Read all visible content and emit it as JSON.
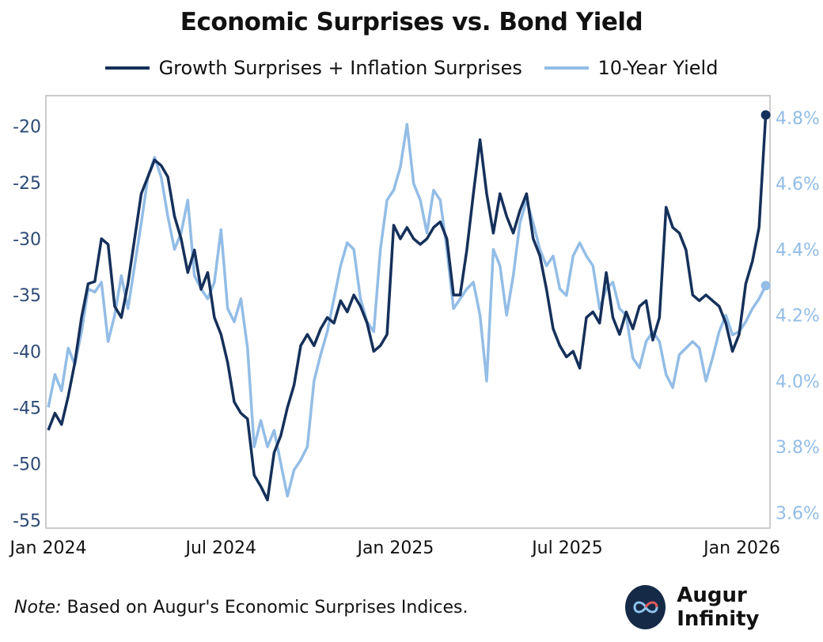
{
  "chart_data": {
    "type": "line",
    "title": "Economic Surprises vs. Bond Yield",
    "x_ticks": [
      "Jan 2024",
      "Jul 2024",
      "Jan 2025",
      "Jul 2025",
      "Jan 2026"
    ],
    "y_left": {
      "ticks": [
        "-20",
        "-25",
        "-30",
        "-35",
        "-40",
        "-45",
        "-50",
        "-55"
      ],
      "range": [
        -55.5,
        -17.5
      ]
    },
    "y_right": {
      "ticks": [
        "4.8%",
        "4.6%",
        "4.4%",
        "4.2%",
        "4.0%",
        "3.8%",
        "3.6%"
      ],
      "range": [
        3.56,
        4.86
      ]
    },
    "x_range": [
      "2024-01-01",
      "2026-01-28"
    ],
    "legend_position": "top-center",
    "grid": false,
    "series": [
      {
        "name": "Growth Surprises + Inflation Surprises",
        "axis": "left",
        "color": "#15305a",
        "points": [
          [
            "2024-01-01",
            -47.0
          ],
          [
            "2024-01-08",
            -45.5
          ],
          [
            "2024-01-15",
            -46.5
          ],
          [
            "2024-01-22",
            -44.0
          ],
          [
            "2024-01-29",
            -41.0
          ],
          [
            "2024-02-05",
            -37.0
          ],
          [
            "2024-02-12",
            -34.0
          ],
          [
            "2024-02-19",
            -33.8
          ],
          [
            "2024-02-26",
            -30.0
          ],
          [
            "2024-03-04",
            -30.5
          ],
          [
            "2024-03-11",
            -36.0
          ],
          [
            "2024-03-18",
            -37.0
          ],
          [
            "2024-03-25",
            -34.0
          ],
          [
            "2024-04-01",
            -30.0
          ],
          [
            "2024-04-08",
            -26.0
          ],
          [
            "2024-04-15",
            -24.5
          ],
          [
            "2024-04-22",
            -23.0
          ],
          [
            "2024-04-29",
            -23.5
          ],
          [
            "2024-05-06",
            -24.5
          ],
          [
            "2024-05-13",
            -28.0
          ],
          [
            "2024-05-20",
            -30.0
          ],
          [
            "2024-05-27",
            -33.0
          ],
          [
            "2024-06-03",
            -31.0
          ],
          [
            "2024-06-10",
            -34.5
          ],
          [
            "2024-06-17",
            -33.0
          ],
          [
            "2024-06-24",
            -37.0
          ],
          [
            "2024-07-01",
            -38.5
          ],
          [
            "2024-07-08",
            -41.0
          ],
          [
            "2024-07-15",
            -44.5
          ],
          [
            "2024-07-22",
            -45.5
          ],
          [
            "2024-07-29",
            -46.0
          ],
          [
            "2024-08-05",
            -51.0
          ],
          [
            "2024-08-12",
            -52.0
          ],
          [
            "2024-08-19",
            -53.2
          ],
          [
            "2024-08-26",
            -49.0
          ],
          [
            "2024-09-02",
            -47.5
          ],
          [
            "2024-09-09",
            -45.0
          ],
          [
            "2024-09-16",
            -43.0
          ],
          [
            "2024-09-23",
            -39.5
          ],
          [
            "2024-09-30",
            -38.5
          ],
          [
            "2024-10-07",
            -39.5
          ],
          [
            "2024-10-14",
            -38.0
          ],
          [
            "2024-10-21",
            -37.0
          ],
          [
            "2024-10-28",
            -37.5
          ],
          [
            "2024-11-04",
            -35.5
          ],
          [
            "2024-11-11",
            -36.5
          ],
          [
            "2024-11-18",
            -35.0
          ],
          [
            "2024-11-25",
            -36.0
          ],
          [
            "2024-12-02",
            -37.5
          ],
          [
            "2024-12-09",
            -40.0
          ],
          [
            "2024-12-16",
            -39.5
          ],
          [
            "2024-12-23",
            -38.5
          ],
          [
            "2024-12-30",
            -28.8
          ],
          [
            "2025-01-06",
            -30.0
          ],
          [
            "2025-01-13",
            -29.0
          ],
          [
            "2025-01-20",
            -30.0
          ],
          [
            "2025-01-27",
            -30.5
          ],
          [
            "2025-02-03",
            -30.0
          ],
          [
            "2025-02-10",
            -29.0
          ],
          [
            "2025-02-17",
            -28.5
          ],
          [
            "2025-02-24",
            -30.0
          ],
          [
            "2025-03-03",
            -35.0
          ],
          [
            "2025-03-10",
            -35.0
          ],
          [
            "2025-03-17",
            -31.0
          ],
          [
            "2025-03-24",
            -26.0
          ],
          [
            "2025-03-31",
            -21.2
          ],
          [
            "2025-04-07",
            -26.0
          ],
          [
            "2025-04-14",
            -29.5
          ],
          [
            "2025-04-21",
            -26.0
          ],
          [
            "2025-04-28",
            -28.0
          ],
          [
            "2025-05-05",
            -29.5
          ],
          [
            "2025-05-12",
            -27.5
          ],
          [
            "2025-05-19",
            -26.0
          ],
          [
            "2025-05-26",
            -30.0
          ],
          [
            "2025-06-02",
            -31.5
          ],
          [
            "2025-06-09",
            -34.5
          ],
          [
            "2025-06-16",
            -38.0
          ],
          [
            "2025-06-23",
            -39.5
          ],
          [
            "2025-06-30",
            -40.5
          ],
          [
            "2025-07-07",
            -40.0
          ],
          [
            "2025-07-14",
            -41.5
          ],
          [
            "2025-07-21",
            -37.0
          ],
          [
            "2025-07-28",
            -36.5
          ],
          [
            "2025-08-04",
            -37.5
          ],
          [
            "2025-08-11",
            -33.0
          ],
          [
            "2025-08-18",
            -37.0
          ],
          [
            "2025-08-25",
            -38.5
          ],
          [
            "2025-09-01",
            -36.5
          ],
          [
            "2025-09-08",
            -38.0
          ],
          [
            "2025-09-15",
            -36.0
          ],
          [
            "2025-09-22",
            -35.5
          ],
          [
            "2025-09-29",
            -39.0
          ],
          [
            "2025-10-06",
            -37.0
          ],
          [
            "2025-10-13",
            -27.2
          ],
          [
            "2025-10-20",
            -29.0
          ],
          [
            "2025-10-27",
            -29.5
          ],
          [
            "2025-11-03",
            -31.0
          ],
          [
            "2025-11-10",
            -35.0
          ],
          [
            "2025-11-17",
            -35.5
          ],
          [
            "2025-11-24",
            -35.0
          ],
          [
            "2025-12-01",
            -35.5
          ],
          [
            "2025-12-08",
            -36.0
          ],
          [
            "2025-12-15",
            -37.5
          ],
          [
            "2025-12-22",
            -40.0
          ],
          [
            "2025-12-29",
            -38.5
          ],
          [
            "2026-01-05",
            -34.0
          ],
          [
            "2026-01-12",
            -32.0
          ],
          [
            "2026-01-19",
            -29.0
          ],
          [
            "2026-01-26",
            -19.0
          ]
        ]
      },
      {
        "name": "10-Year Yield",
        "axis": "right",
        "color": "#93bde6",
        "points": [
          [
            "2024-01-01",
            3.92
          ],
          [
            "2024-01-08",
            4.02
          ],
          [
            "2024-01-15",
            3.97
          ],
          [
            "2024-01-22",
            4.1
          ],
          [
            "2024-01-29",
            4.05
          ],
          [
            "2024-02-05",
            4.15
          ],
          [
            "2024-02-12",
            4.28
          ],
          [
            "2024-02-19",
            4.27
          ],
          [
            "2024-02-26",
            4.3
          ],
          [
            "2024-03-04",
            4.12
          ],
          [
            "2024-03-11",
            4.2
          ],
          [
            "2024-03-18",
            4.32
          ],
          [
            "2024-03-25",
            4.22
          ],
          [
            "2024-04-01",
            4.35
          ],
          [
            "2024-04-08",
            4.48
          ],
          [
            "2024-04-15",
            4.62
          ],
          [
            "2024-04-22",
            4.68
          ],
          [
            "2024-04-29",
            4.62
          ],
          [
            "2024-05-06",
            4.5
          ],
          [
            "2024-05-13",
            4.4
          ],
          [
            "2024-05-20",
            4.45
          ],
          [
            "2024-05-27",
            4.55
          ],
          [
            "2024-06-03",
            4.32
          ],
          [
            "2024-06-10",
            4.28
          ],
          [
            "2024-06-17",
            4.25
          ],
          [
            "2024-06-24",
            4.3
          ],
          [
            "2024-07-01",
            4.46
          ],
          [
            "2024-07-08",
            4.22
          ],
          [
            "2024-07-15",
            4.18
          ],
          [
            "2024-07-22",
            4.25
          ],
          [
            "2024-07-29",
            4.1
          ],
          [
            "2024-08-05",
            3.8
          ],
          [
            "2024-08-12",
            3.88
          ],
          [
            "2024-08-19",
            3.8
          ],
          [
            "2024-08-26",
            3.85
          ],
          [
            "2024-09-02",
            3.75
          ],
          [
            "2024-09-09",
            3.65
          ],
          [
            "2024-09-16",
            3.73
          ],
          [
            "2024-09-23",
            3.76
          ],
          [
            "2024-09-30",
            3.8
          ],
          [
            "2024-10-07",
            4.0
          ],
          [
            "2024-10-14",
            4.08
          ],
          [
            "2024-10-21",
            4.15
          ],
          [
            "2024-10-28",
            4.25
          ],
          [
            "2024-11-04",
            4.35
          ],
          [
            "2024-11-11",
            4.42
          ],
          [
            "2024-11-18",
            4.4
          ],
          [
            "2024-11-25",
            4.25
          ],
          [
            "2024-12-02",
            4.18
          ],
          [
            "2024-12-09",
            4.15
          ],
          [
            "2024-12-16",
            4.4
          ],
          [
            "2024-12-23",
            4.55
          ],
          [
            "2024-12-30",
            4.58
          ],
          [
            "2025-01-06",
            4.65
          ],
          [
            "2025-01-13",
            4.78
          ],
          [
            "2025-01-20",
            4.6
          ],
          [
            "2025-01-27",
            4.55
          ],
          [
            "2025-02-03",
            4.45
          ],
          [
            "2025-02-10",
            4.58
          ],
          [
            "2025-02-17",
            4.55
          ],
          [
            "2025-02-24",
            4.4
          ],
          [
            "2025-03-03",
            4.22
          ],
          [
            "2025-03-10",
            4.25
          ],
          [
            "2025-03-17",
            4.28
          ],
          [
            "2025-03-24",
            4.3
          ],
          [
            "2025-03-31",
            4.2
          ],
          [
            "2025-04-07",
            4.0
          ],
          [
            "2025-04-14",
            4.4
          ],
          [
            "2025-04-21",
            4.35
          ],
          [
            "2025-04-28",
            4.2
          ],
          [
            "2025-05-05",
            4.32
          ],
          [
            "2025-05-12",
            4.48
          ],
          [
            "2025-05-19",
            4.55
          ],
          [
            "2025-05-26",
            4.48
          ],
          [
            "2025-06-02",
            4.4
          ],
          [
            "2025-06-09",
            4.35
          ],
          [
            "2025-06-16",
            4.38
          ],
          [
            "2025-06-23",
            4.28
          ],
          [
            "2025-06-30",
            4.26
          ],
          [
            "2025-07-07",
            4.38
          ],
          [
            "2025-07-14",
            4.42
          ],
          [
            "2025-07-21",
            4.38
          ],
          [
            "2025-07-28",
            4.35
          ],
          [
            "2025-08-04",
            4.22
          ],
          [
            "2025-08-11",
            4.28
          ],
          [
            "2025-08-18",
            4.3
          ],
          [
            "2025-08-25",
            4.22
          ],
          [
            "2025-09-01",
            4.2
          ],
          [
            "2025-09-08",
            4.07
          ],
          [
            "2025-09-15",
            4.04
          ],
          [
            "2025-09-22",
            4.12
          ],
          [
            "2025-09-29",
            4.15
          ],
          [
            "2025-10-06",
            4.12
          ],
          [
            "2025-10-13",
            4.02
          ],
          [
            "2025-10-20",
            3.98
          ],
          [
            "2025-10-27",
            4.08
          ],
          [
            "2025-11-03",
            4.1
          ],
          [
            "2025-11-10",
            4.12
          ],
          [
            "2025-11-17",
            4.1
          ],
          [
            "2025-11-24",
            4.0
          ],
          [
            "2025-12-01",
            4.07
          ],
          [
            "2025-12-08",
            4.15
          ],
          [
            "2025-12-15",
            4.2
          ],
          [
            "2025-12-22",
            4.14
          ],
          [
            "2025-12-29",
            4.15
          ],
          [
            "2026-01-05",
            4.18
          ],
          [
            "2026-01-12",
            4.22
          ],
          [
            "2026-01-19",
            4.25
          ],
          [
            "2026-01-26",
            4.29
          ]
        ]
      }
    ]
  },
  "footer": {
    "note_label": "Note:",
    "note_text": " Based on Augur's Economic Surprises Indices.",
    "brand": "Augur Infinity"
  },
  "colors": {
    "growth": "#15305a",
    "yield": "#93bde6",
    "left_axis_text": "#2c4a75",
    "right_axis_text": "#93bde6",
    "frame": "#cccccc"
  }
}
